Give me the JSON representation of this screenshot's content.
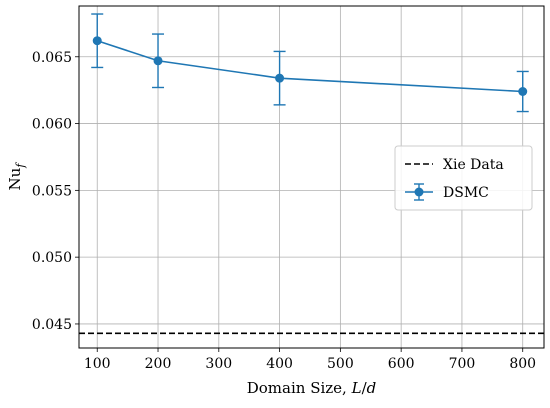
{
  "chart_data": {
    "type": "line",
    "title": "",
    "xlabel_parts": [
      "Domain Size, ",
      "L",
      "/",
      "d"
    ],
    "ylabel_parts": [
      "Nu",
      "f"
    ],
    "xlim": [
      70,
      835
    ],
    "ylim": [
      0.0432,
      0.0688
    ],
    "xticks": [
      100,
      200,
      300,
      400,
      500,
      600,
      700,
      800
    ],
    "xtick_labels": [
      "100",
      "200",
      "300",
      "400",
      "500",
      "600",
      "700",
      "800"
    ],
    "yticks": [
      0.045,
      0.05,
      0.055,
      0.06,
      0.065
    ],
    "ytick_labels": [
      "0.045",
      "0.050",
      "0.055",
      "0.060",
      "0.065"
    ],
    "grid": true,
    "legend_position": "center-right",
    "series": [
      {
        "name": "Xie Data",
        "kind": "hline",
        "y": 0.0443,
        "color": "#000000",
        "linestyle": "dashed"
      },
      {
        "name": "DSMC",
        "kind": "errorbar",
        "x": [
          100,
          200,
          400,
          800
        ],
        "y": [
          0.0662,
          0.0647,
          0.0634,
          0.0624
        ],
        "yerr": [
          0.002,
          0.002,
          0.002,
          0.0015
        ],
        "color": "#1f77b4"
      }
    ]
  }
}
